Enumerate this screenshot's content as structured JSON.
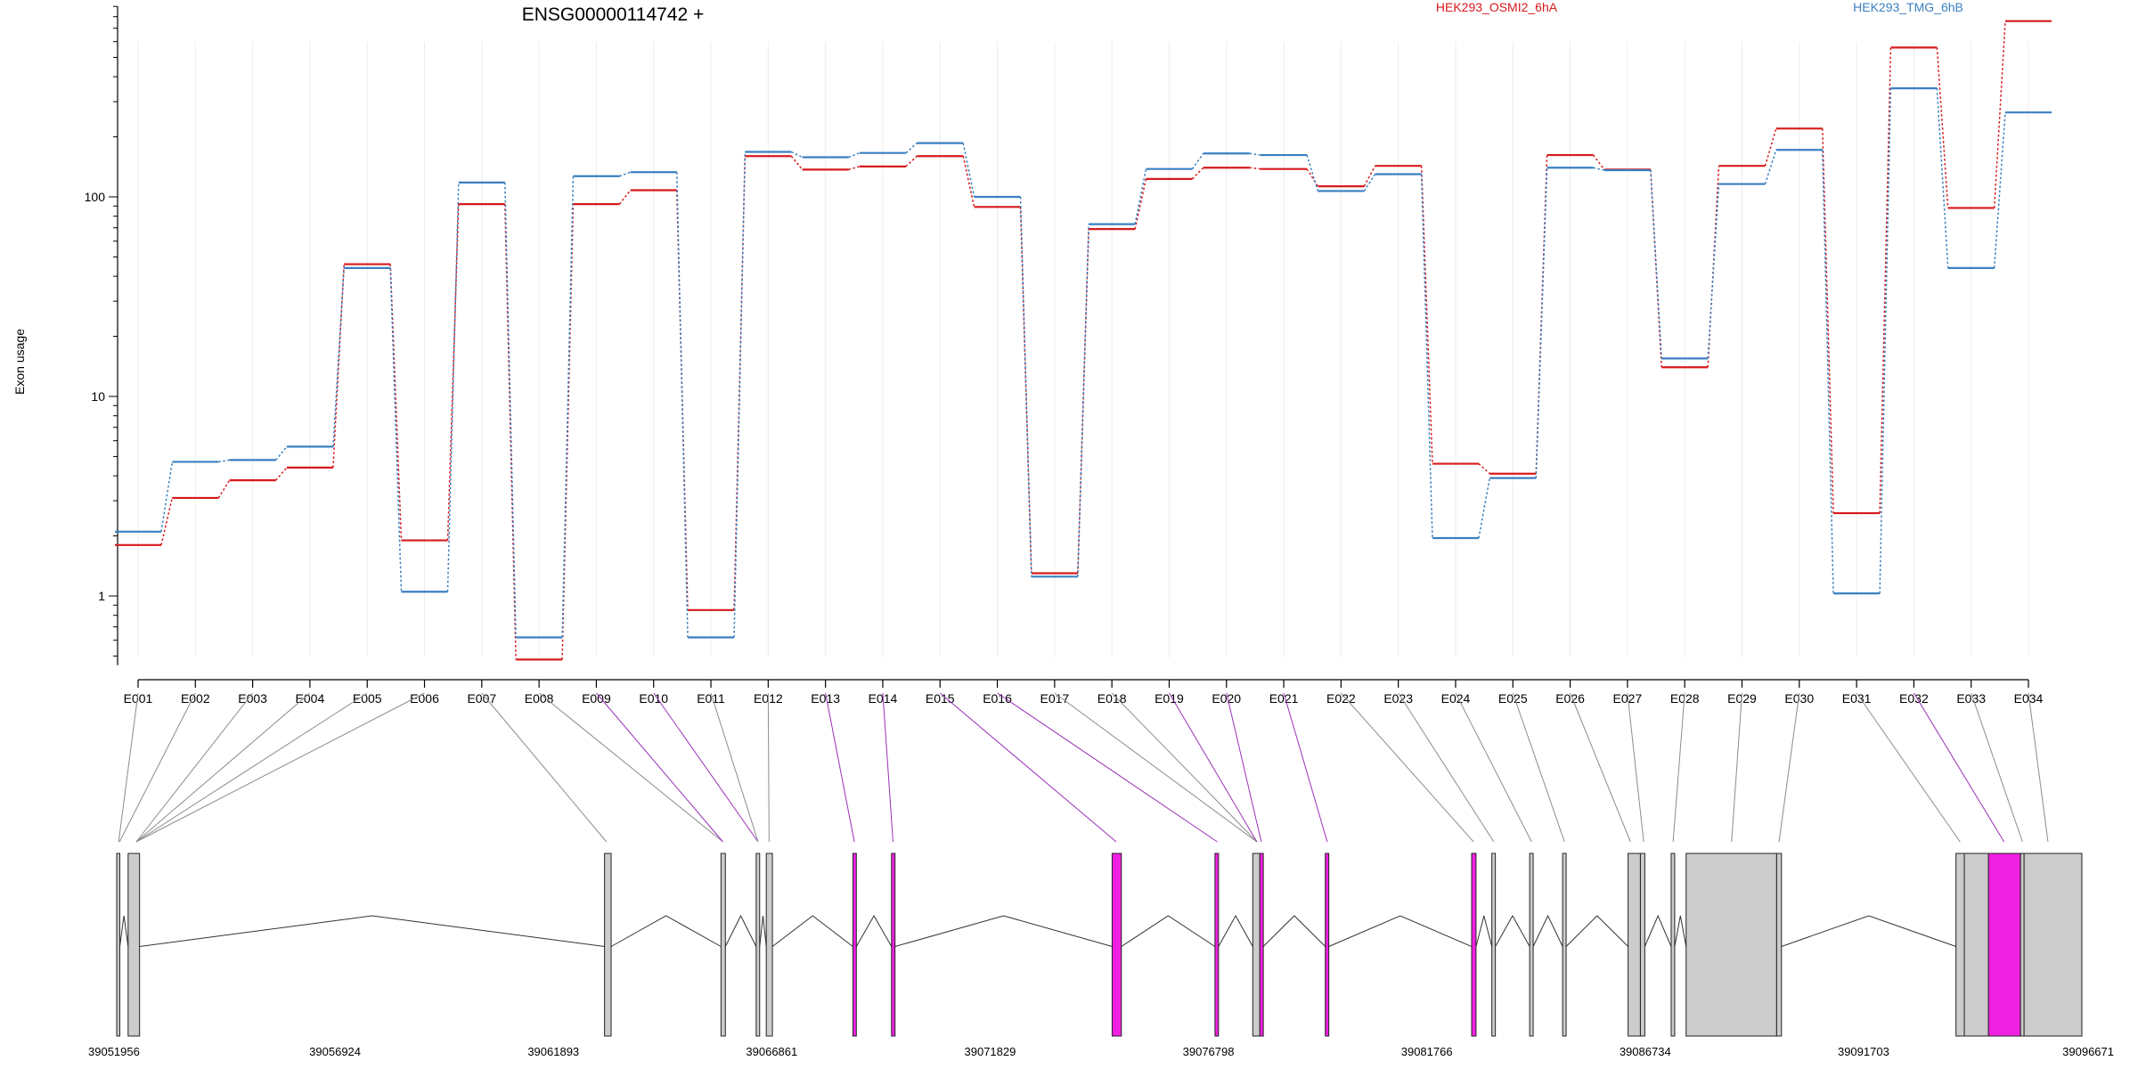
{
  "chart_data": {
    "type": "line",
    "title": "ENSG00000114742 +",
    "ylabel": "Exon usage",
    "yscale": "log",
    "ylim": [
      0.45,
      900
    ],
    "yticks": [
      1,
      10,
      100
    ],
    "grid": "vertical",
    "legend_placement": "top-right",
    "categories": [
      "E001",
      "E002",
      "E003",
      "E004",
      "E005",
      "E006",
      "E007",
      "E008",
      "E009",
      "E010",
      "E011",
      "E012",
      "E013",
      "E014",
      "E015",
      "E016",
      "E017",
      "E018",
      "E019",
      "E020",
      "E021",
      "E022",
      "E023",
      "E024",
      "E025",
      "E026",
      "E027",
      "E028",
      "E029",
      "E030",
      "E031",
      "E032",
      "E033",
      "E034"
    ],
    "series": [
      {
        "name": "HEK293_OSMI2_6hA",
        "color": "#d7191c",
        "values": [
          1.8,
          3.1,
          3.8,
          4.4,
          46,
          1.9,
          92,
          0.48,
          92,
          108,
          0.85,
          160,
          137,
          142,
          160,
          89,
          1.3,
          69,
          123,
          140,
          138,
          113,
          143,
          4.6,
          4.1,
          162,
          137,
          14,
          143,
          220,
          2.6,
          560,
          88,
          760
        ]
      },
      {
        "name": "HEK293_TMG_6hB",
        "color": "#3a7fc0",
        "values": [
          2.1,
          4.7,
          4.8,
          5.6,
          44,
          1.05,
          118,
          0.62,
          127,
          133,
          0.62,
          168,
          158,
          166,
          186,
          100,
          1.25,
          73,
          138,
          165,
          162,
          107,
          130,
          1.95,
          3.9,
          140,
          136,
          15.5,
          116,
          172,
          1.03,
          350,
          44,
          265
        ]
      }
    ],
    "gene_model": {
      "coordinate_labels": [
        "39051956",
        "39056924",
        "39061893",
        "39066861",
        "39071829",
        "39076798",
        "39081766",
        "39086734",
        "39091703",
        "39096671"
      ],
      "coord_ticks": [
        39051956,
        39056924,
        39061893,
        39066861,
        39071829,
        39076798,
        39081766,
        39086734,
        39091703,
        39096671
      ],
      "exons": [
        {
          "start": 39051956,
          "end": 39052026,
          "highlight": false
        },
        {
          "start": 39052216,
          "end": 39052476,
          "highlight": false
        },
        {
          "start": 39063056,
          "end": 39063206,
          "highlight": false
        },
        {
          "start": 39065706,
          "end": 39065806,
          "highlight": false
        },
        {
          "start": 39066506,
          "end": 39066586,
          "highlight": false
        },
        {
          "start": 39066736,
          "end": 39066876,
          "highlight": false
        },
        {
          "start": 39068706,
          "end": 39068786,
          "highlight": true
        },
        {
          "start": 39069586,
          "end": 39069666,
          "highlight": true
        },
        {
          "start": 39074606,
          "end": 39074816,
          "highlight": true
        },
        {
          "start": 39076946,
          "end": 39077026,
          "highlight": true
        },
        {
          "start": 39077806,
          "end": 39077966,
          "highlight": false
        },
        {
          "start": 39077966,
          "end": 39078046,
          "highlight": true
        },
        {
          "start": 39079456,
          "end": 39079536,
          "highlight": true
        },
        {
          "start": 39082786,
          "end": 39082886,
          "highlight": true
        },
        {
          "start": 39083246,
          "end": 39083326,
          "highlight": false
        },
        {
          "start": 39084106,
          "end": 39084186,
          "highlight": false
        },
        {
          "start": 39084856,
          "end": 39084936,
          "highlight": false
        },
        {
          "start": 39086346,
          "end": 39086626,
          "highlight": false
        },
        {
          "start": 39086626,
          "end": 39086726,
          "highlight": false
        },
        {
          "start": 39087326,
          "end": 39087406,
          "highlight": false
        },
        {
          "start": 39087666,
          "end": 39089726,
          "highlight": false
        },
        {
          "start": 39089726,
          "end": 39089836,
          "highlight": false
        },
        {
          "start": 39093806,
          "end": 39093996,
          "highlight": false
        },
        {
          "start": 39093996,
          "end": 39094546,
          "highlight": false
        },
        {
          "start": 39094546,
          "end": 39095276,
          "highlight": true
        },
        {
          "start": 39095276,
          "end": 39095356,
          "highlight": false
        },
        {
          "start": 39095356,
          "end": 39096671,
          "highlight": false
        }
      ],
      "exon_map": [
        39052000,
        39052020,
        39052400,
        39052400,
        39052400,
        39052400,
        39063100,
        39065750,
        39065750,
        39066550,
        39066550,
        39066800,
        39068740,
        39069620,
        39074700,
        39077000,
        39077900,
        39077900,
        39077900,
        39078000,
        39079500,
        39082830,
        39083290,
        39084150,
        39084900,
        39086400,
        39086700,
        39087370,
        39088700,
        39089780,
        39093900,
        39094900,
        39095320,
        39095900
      ],
      "exon_map_highlight": [
        false,
        false,
        false,
        false,
        false,
        false,
        false,
        false,
        true,
        true,
        false,
        false,
        true,
        true,
        true,
        true,
        false,
        false,
        true,
        true,
        true,
        false,
        false,
        false,
        false,
        false,
        false,
        false,
        false,
        false,
        false,
        true,
        false,
        false
      ]
    }
  }
}
